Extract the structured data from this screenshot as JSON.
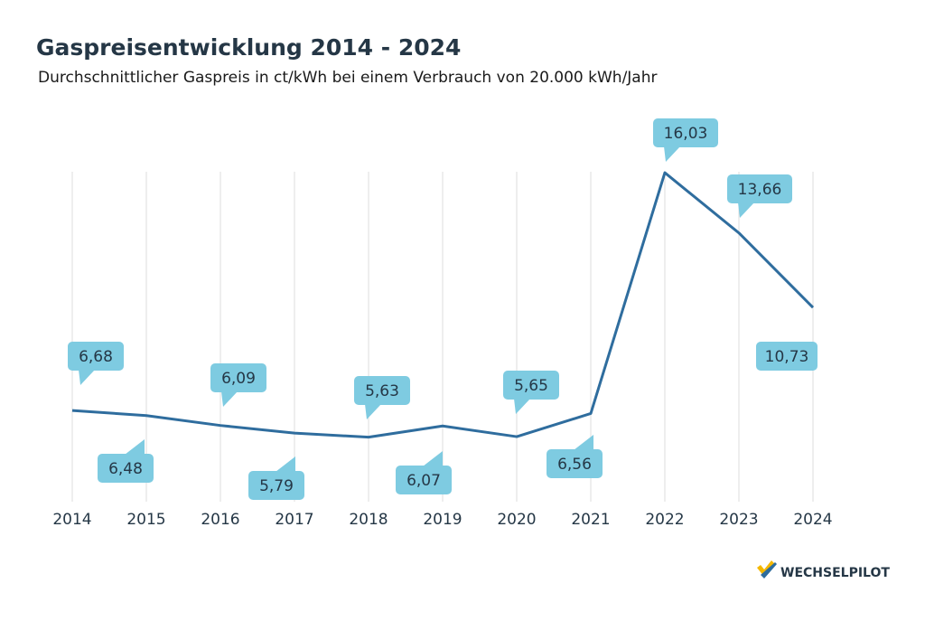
{
  "chart_data": {
    "type": "line",
    "title": "Gaspreisentwicklung 2014 - 2024",
    "subtitle": "Durchschnittlicher Gaspreis in ct/kWh bei einem Verbrauch von 20.000 kWh/Jahr",
    "categories": [
      "2014",
      "2015",
      "2016",
      "2017",
      "2018",
      "2019",
      "2020",
      "2021",
      "2022",
      "2023",
      "2024"
    ],
    "values": [
      6.68,
      6.48,
      6.09,
      5.79,
      5.63,
      6.07,
      5.65,
      6.56,
      16.03,
      13.66,
      10.73
    ],
    "value_labels": [
      "6,68",
      "6,48",
      "6,09",
      "5,79",
      "5,63",
      "6,07",
      "5,65",
      "6,56",
      "16,03",
      "13,66",
      "10,73"
    ],
    "color": "#2f6d9e",
    "label_color": "#7ecbe1",
    "grid": true
  },
  "logo": "WECHSELPILOT"
}
